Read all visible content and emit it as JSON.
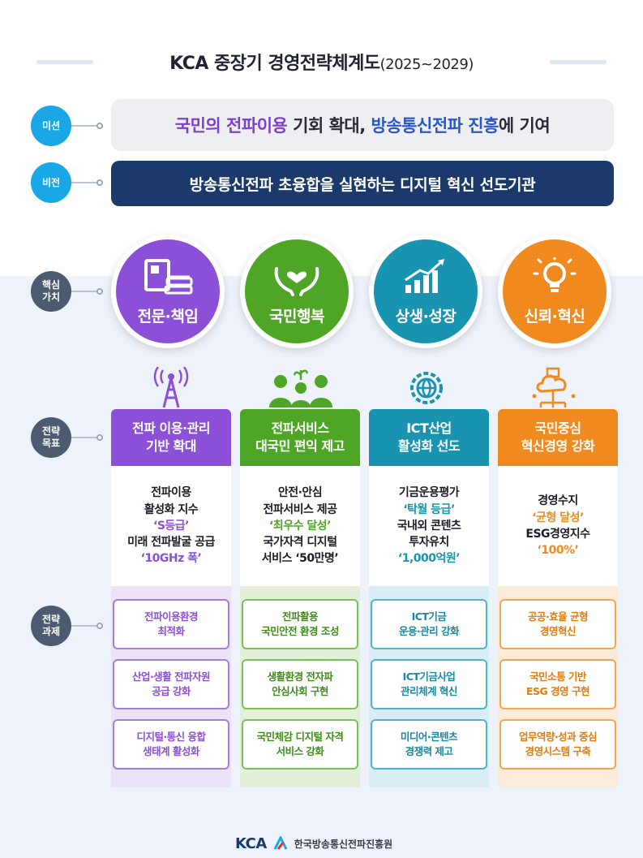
{
  "title": {
    "main": "KCA 중장기 경영전략체계도",
    "years": "(2025~2029)"
  },
  "side_labels": {
    "mission": "미션",
    "vision": "비전",
    "core_values": "핵심\n가치",
    "strategic_goals": "전략\n목표",
    "strategic_tasks": "전략\n과제"
  },
  "mission": {
    "part1": "국민의 전파이용",
    "part2": " 기회 확대, ",
    "part3": "방송통신전파 진흥",
    "part4": "에 기여"
  },
  "vision": "방송통신전파 초융합을 실현하는 디지털 혁신 선도기관",
  "core_values": [
    {
      "label": "전문·책임",
      "icon": "books-icon",
      "color": "#8b4fd8"
    },
    {
      "label": "국민행복",
      "icon": "heart-hands-icon",
      "color": "#4fa525"
    },
    {
      "label": "상생·성장",
      "icon": "growth-chart-icon",
      "color": "#1994b0"
    },
    {
      "label": "신뢰·혁신",
      "icon": "lightbulb-icon",
      "color": "#f08a1f"
    }
  ],
  "columns": [
    {
      "color": "#8b4fd8",
      "icon": "radio-tower-icon",
      "goal": "전파 이용·관리\n기반 확대",
      "metrics": [
        "전파이용",
        "활성화 지수",
        "‘S등급’",
        "미래 전파발굴 공급",
        "‘10GHz 폭’"
      ],
      "tasks": [
        "전파이용환경\n최적화",
        "산업·생활 전파자원\n공급 강화",
        "디지털·통신 융합\n생태계 활성화"
      ]
    },
    {
      "color": "#4fa525",
      "icon": "people-icon",
      "goal": "전파서비스\n대국민 편익 제고",
      "metrics": [
        "안전·안심",
        "전파서비스 제공",
        "‘최우수 달성’",
        "국가자격 디지털",
        "서비스 ‘50만명’"
      ],
      "tasks": [
        "전파활용\n국민안전 환경 조성",
        "생활환경 전자파\n안심사회 구현",
        "국민체감 디지털 자격\n서비스 강화"
      ]
    },
    {
      "color": "#1994b0",
      "icon": "gear-globe-icon",
      "goal": "ICT산업\n활성화 선도",
      "metrics": [
        "기금운용평가",
        "‘탁월 등급’",
        "국내외 콘텐츠",
        "투자유치",
        "‘1,000억원’"
      ],
      "tasks": [
        "ICT기금\n운용·관리 강화",
        "ICT기금사업\n관리체계 혁신",
        "미디어·콘텐츠\n경쟁력 제고"
      ]
    },
    {
      "color": "#f08a1f",
      "icon": "cloud-network-icon",
      "goal": "국민중심\n혁신경영 강화",
      "metrics": [
        "경영수지",
        "‘균형 달성’",
        "ESG경영지수",
        "‘100%’"
      ],
      "tasks": [
        "공공·효율 균형\n경영혁신",
        "국민소통 기반\nESG 경영 구현",
        "업무역량·성과 중심\n경영시스템 구축"
      ]
    }
  ],
  "footer": {
    "logo": "KCA",
    "org": "한국방송통신전파진흥원"
  }
}
